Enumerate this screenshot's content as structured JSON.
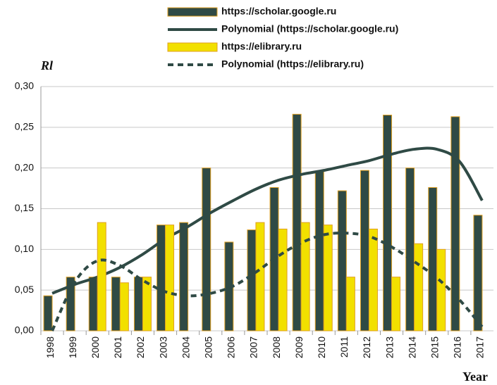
{
  "chart_data": {
    "type": "bar",
    "y_label": "Rl",
    "x_label": "Year",
    "categories": [
      "1998",
      "1999",
      "2000",
      "2001",
      "2002",
      "2003",
      "2004",
      "2005",
      "2006",
      "2007",
      "2008",
      "2009",
      "2010",
      "2011",
      "2012",
      "2013",
      "2014",
      "2015",
      "2016",
      "2017"
    ],
    "series": [
      {
        "name": "https://scholar.google.ru",
        "type": "bar",
        "color": "#2f4a45",
        "edge": "#e0a020",
        "values": [
          0.043,
          0.066,
          0.066,
          0.066,
          0.066,
          0.13,
          0.133,
          0.2,
          0.109,
          0.124,
          0.176,
          0.266,
          0.196,
          0.172,
          0.197,
          0.265,
          0.2,
          0.176,
          0.263,
          0.142
        ]
      },
      {
        "name": "Polynomial (https://scholar.google.ru)",
        "type": "line",
        "color": "#2f4a45",
        "dash": false,
        "values": [
          0.046,
          0.057,
          0.066,
          0.078,
          0.094,
          0.113,
          0.128,
          0.145,
          0.16,
          0.174,
          0.185,
          0.192,
          0.197,
          0.203,
          0.209,
          0.217,
          0.223,
          0.223,
          0.208,
          0.16
        ]
      },
      {
        "name": "https://elibrary.ru",
        "type": "bar",
        "color": "#f2e000",
        "edge": "#e0a020",
        "values": [
          0,
          0,
          0.133,
          0.059,
          0.066,
          0.13,
          0,
          0,
          0,
          0.133,
          0.125,
          0.133,
          0.13,
          0.066,
          0.125,
          0.066,
          0.107,
          0.1,
          0,
          0
        ]
      },
      {
        "name": "Polynomial (https://elibrary.ru)",
        "type": "line",
        "color": "#2f4a45",
        "dash": true,
        "values": [
          0,
          0.06,
          0.086,
          0.08,
          0.062,
          0.048,
          0.043,
          0.046,
          0.055,
          0.072,
          0.092,
          0.108,
          0.118,
          0.12,
          0.116,
          0.103,
          0.085,
          0.065,
          0.038,
          0.005
        ]
      }
    ],
    "ylim": [
      0,
      0.3
    ],
    "yticks": [
      {
        "value": 0,
        "label": "0,00"
      },
      {
        "value": 0.05,
        "label": "0,05"
      },
      {
        "value": 0.1,
        "label": "0,10"
      },
      {
        "value": 0.15,
        "label": "0,15"
      },
      {
        "value": 0.2,
        "label": "0,20"
      },
      {
        "value": 0.25,
        "label": "0,25"
      },
      {
        "value": 0.3,
        "label": "0,30"
      }
    ],
    "grid": true
  }
}
